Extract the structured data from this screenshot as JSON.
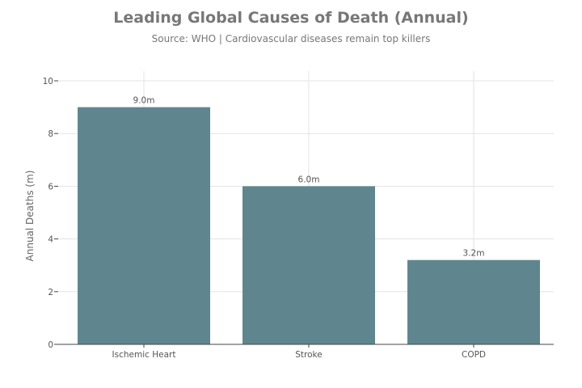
{
  "chart_data": {
    "type": "bar",
    "title": "Leading Global Causes of Death (Annual)",
    "subtitle": "Source: WHO | Cardiovascular diseases remain top killers",
    "xlabel": "",
    "ylabel": "Annual Deaths (m)",
    "categories": [
      "Ischemic Heart",
      "Stroke",
      "COPD"
    ],
    "values": [
      9.0,
      6.0,
      3.2
    ],
    "data_labels": [
      "9.0m",
      "6.0m",
      "3.2m"
    ],
    "ylim": [
      0,
      10
    ],
    "yticks": [
      0,
      2,
      4,
      6,
      8,
      10
    ],
    "grid": true,
    "legend": "none",
    "colors": {
      "bar": "#5f868e",
      "grid": "#e3e3e3",
      "axis": "#444444"
    }
  }
}
